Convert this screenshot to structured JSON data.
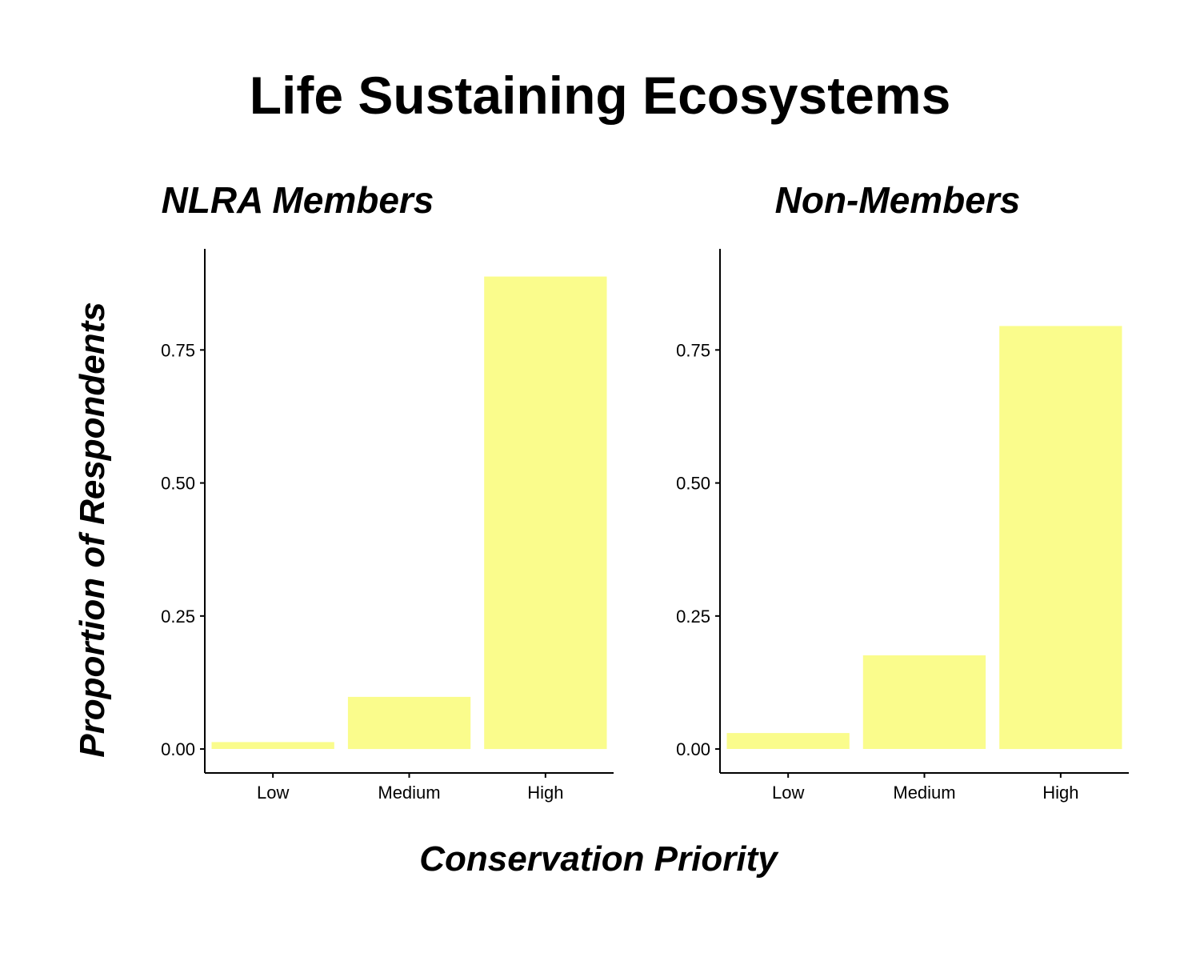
{
  "title": "Life Sustaining Ecosystems",
  "xlabel": "Conservation Priority",
  "ylabel": "Proportion of Respondents",
  "colors": {
    "bar": "#FAFC8C",
    "axis": "#000000",
    "background": "#FFFFFF"
  },
  "chart_data": [
    {
      "type": "bar",
      "title": "NLRA Members",
      "categories": [
        "Low",
        "Medium",
        "High"
      ],
      "values": [
        0.013,
        0.098,
        0.888
      ],
      "ylim": [
        -0.045,
        0.94
      ],
      "yticks": [
        0.0,
        0.25,
        0.5,
        0.75
      ],
      "ytick_labels": [
        "0.00",
        "0.25",
        "0.50",
        "0.75"
      ],
      "xlabel": "Conservation Priority",
      "ylabel": "Proportion of Respondents",
      "grid": false,
      "legend": "none"
    },
    {
      "type": "bar",
      "title": "Non-Members",
      "categories": [
        "Low",
        "Medium",
        "High"
      ],
      "values": [
        0.03,
        0.176,
        0.795
      ],
      "ylim": [
        -0.045,
        0.94
      ],
      "yticks": [
        0.0,
        0.25,
        0.5,
        0.75
      ],
      "ytick_labels": [
        "0.00",
        "0.25",
        "0.50",
        "0.75"
      ],
      "xlabel": "Conservation Priority",
      "ylabel": "Proportion of Respondents",
      "grid": false,
      "legend": "none"
    }
  ]
}
